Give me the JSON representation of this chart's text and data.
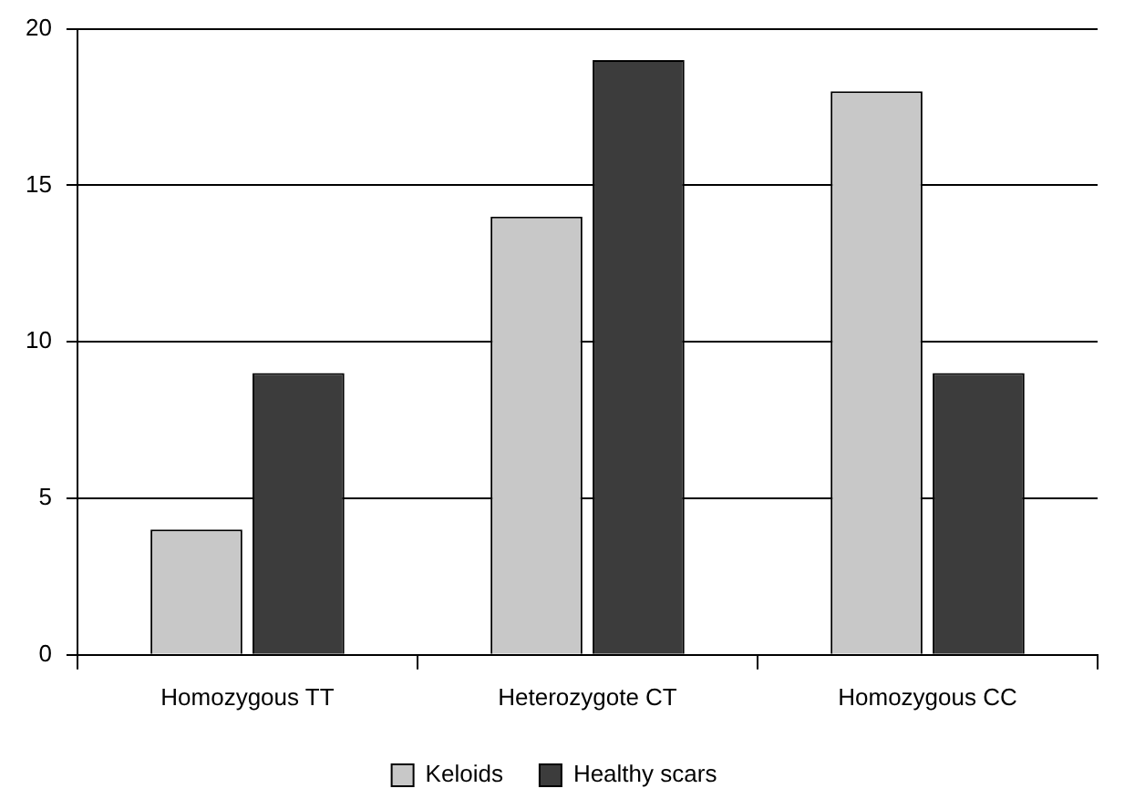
{
  "chart_data": {
    "type": "bar",
    "categories": [
      "Homozygous TT",
      "Heterozygote CT",
      "Homozygous CC"
    ],
    "series": [
      {
        "name": "Keloids",
        "color": "#c8c8c8",
        "values": [
          4,
          14,
          18
        ]
      },
      {
        "name": "Healthy scars",
        "color": "#3c3c3c",
        "values": [
          9,
          19,
          9
        ]
      }
    ],
    "ylim": [
      0,
      20
    ],
    "yticks": [
      0,
      5,
      10,
      15,
      20
    ],
    "grid": "y",
    "legend": "bottom"
  }
}
